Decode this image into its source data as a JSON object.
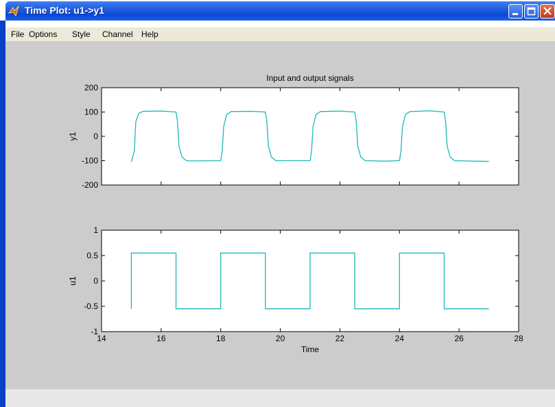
{
  "window": {
    "title": "Time Plot: u1->y1"
  },
  "menu": {
    "items": [
      "File",
      "Options",
      "Style",
      "Channel",
      "Help"
    ]
  },
  "colors": {
    "trace": "#1cb8b8",
    "background": "#cccccc",
    "axes_bg": "#ffffff",
    "titlebar": "#0a48d8"
  },
  "icons": {
    "app": "matlab-logo-icon",
    "minimize": "minimize-icon",
    "maximize": "maximize-icon",
    "close": "close-icon"
  },
  "chart_data": [
    {
      "type": "line",
      "title": "Input and output signals",
      "xlabel": "",
      "ylabel": "y1",
      "xlim": [
        14,
        28
      ],
      "ylim": [
        -200,
        200
      ],
      "xticks": [
        14,
        16,
        18,
        20,
        22,
        24,
        26,
        28
      ],
      "yticks": [
        -200,
        -100,
        0,
        100,
        200
      ],
      "xtick_labels_visible": false,
      "grid": false,
      "series": [
        {
          "x": [
            15.0,
            15.1,
            15.15,
            15.25,
            15.4,
            16.0,
            16.5,
            16.55,
            16.6,
            16.7,
            16.85,
            17.0,
            18.0,
            18.05,
            18.1,
            18.2,
            18.35,
            19.0,
            19.5,
            19.55,
            19.6,
            19.7,
            19.85,
            20.5,
            21.0,
            21.05,
            21.1,
            21.2,
            21.35,
            22.0,
            22.5,
            22.55,
            22.6,
            22.7,
            22.85,
            23.5,
            24.0,
            24.05,
            24.1,
            24.2,
            24.35,
            25.0,
            25.5,
            25.55,
            25.6,
            25.7,
            25.85,
            26.5,
            27.0
          ],
          "y": [
            -105,
            -60,
            60,
            95,
            103,
            104,
            100,
            60,
            -40,
            -85,
            -100,
            -101,
            -100,
            -60,
            40,
            90,
            102,
            103,
            100,
            60,
            -40,
            -85,
            -100,
            -100,
            -100,
            -60,
            40,
            90,
            102,
            104,
            100,
            60,
            -40,
            -85,
            -100,
            -102,
            -100,
            -60,
            40,
            90,
            102,
            105,
            100,
            60,
            -40,
            -85,
            -100,
            -102,
            -103
          ]
        }
      ]
    },
    {
      "type": "line",
      "title": "",
      "xlabel": "Time",
      "ylabel": "u1",
      "xlim": [
        14,
        28
      ],
      "ylim": [
        -1,
        1
      ],
      "xticks": [
        14,
        16,
        18,
        20,
        22,
        24,
        26,
        28
      ],
      "yticks": [
        -1,
        -0.5,
        0,
        0.5,
        1
      ],
      "grid": false,
      "series": [
        {
          "x": [
            15.0,
            15.0,
            16.5,
            16.5,
            18.0,
            18.0,
            19.5,
            19.5,
            21.0,
            21.0,
            22.5,
            22.5,
            24.0,
            24.0,
            25.5,
            25.5,
            27.0
          ],
          "y": [
            -0.55,
            0.55,
            0.55,
            -0.55,
            -0.55,
            0.55,
            0.55,
            -0.55,
            -0.55,
            0.55,
            0.55,
            -0.55,
            -0.55,
            0.55,
            0.55,
            -0.55,
            -0.55
          ]
        }
      ]
    }
  ]
}
